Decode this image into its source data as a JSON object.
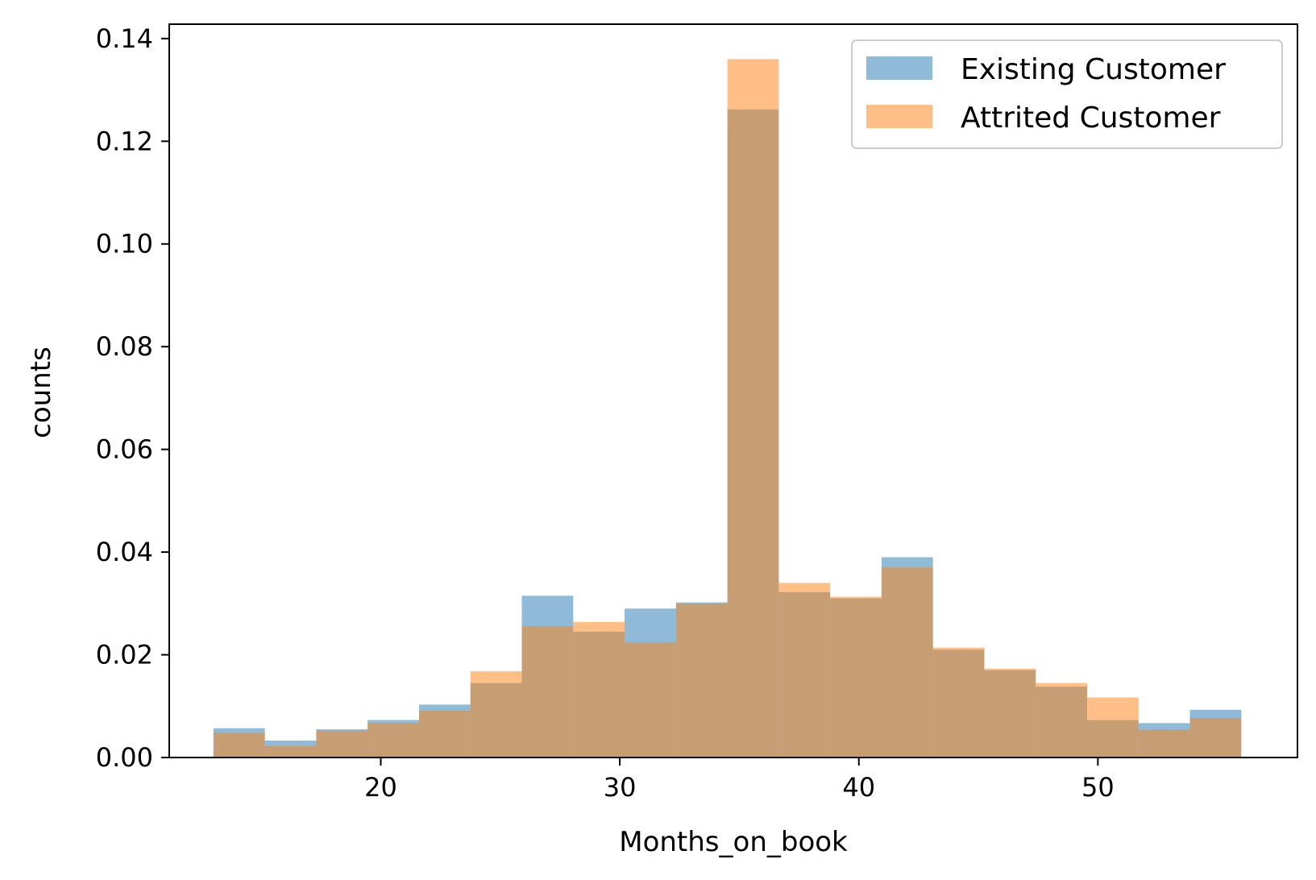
{
  "chart_data": {
    "type": "bar",
    "subtype": "overlaid-histogram",
    "title": "",
    "xlabel": "Months_on_book",
    "ylabel": "counts",
    "xlim": [
      11.15,
      58.35
    ],
    "ylim": [
      0,
      0.1428
    ],
    "xticks": [
      20,
      30,
      40,
      50
    ],
    "yticks": [
      0.0,
      0.02,
      0.04,
      0.06,
      0.08,
      0.1,
      0.12,
      0.14
    ],
    "ytick_labels": [
      "0.00",
      "0.02",
      "0.04",
      "0.06",
      "0.08",
      "0.10",
      "0.12",
      "0.14"
    ],
    "xtick_labels": [
      "20",
      "30",
      "40",
      "50"
    ],
    "grid": false,
    "legend_position": "top-right",
    "bin_edges": [
      13.0,
      15.15,
      17.3,
      19.45,
      21.6,
      23.75,
      25.9,
      28.05,
      30.2,
      32.35,
      34.5,
      36.65,
      38.8,
      40.95,
      43.1,
      45.25,
      47.4,
      49.55,
      51.7,
      53.85,
      56.0
    ],
    "series": [
      {
        "name": "Existing Customer",
        "color": "#1f77b4",
        "alpha": 0.5,
        "values": [
          0.0057,
          0.0033,
          0.0055,
          0.0073,
          0.0103,
          0.0145,
          0.0315,
          0.0245,
          0.029,
          0.0302,
          0.1262,
          0.0322,
          0.031,
          0.039,
          0.021,
          0.017,
          0.0138,
          0.0073,
          0.0067,
          0.0093
        ]
      },
      {
        "name": "Attrited Customer",
        "color": "#ff7f0e",
        "alpha": 0.5,
        "values": [
          0.0048,
          0.0022,
          0.0052,
          0.0067,
          0.0091,
          0.0168,
          0.0256,
          0.0264,
          0.0224,
          0.03,
          0.136,
          0.034,
          0.0313,
          0.037,
          0.0214,
          0.0173,
          0.0145,
          0.0117,
          0.0054,
          0.0077
        ]
      }
    ]
  }
}
